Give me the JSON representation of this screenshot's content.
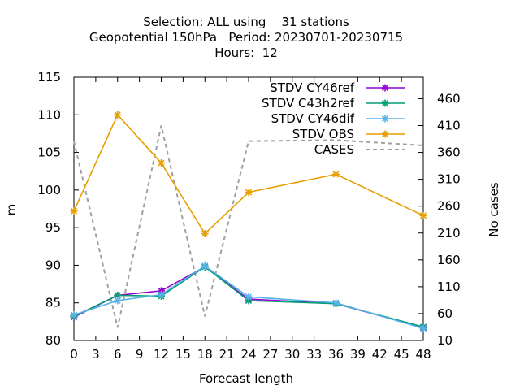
{
  "chart_data": {
    "type": "line",
    "title_lines": [
      "Selection: ALL using    31 stations",
      "Geopotential 150hPa   Period: 20230701-20230715",
      "Hours:  12"
    ],
    "xlabel": "Forecast length",
    "ylabel": "m",
    "y2label": "No cases",
    "xlim": [
      0,
      48
    ],
    "ylim": [
      80,
      115
    ],
    "y2lim": [
      10,
      500
    ],
    "xticks": [
      0,
      3,
      6,
      9,
      12,
      15,
      18,
      21,
      24,
      27,
      30,
      33,
      36,
      39,
      42,
      45,
      48
    ],
    "yticks": [
      80,
      85,
      90,
      95,
      100,
      105,
      110,
      115
    ],
    "y2ticks": [
      10,
      60,
      110,
      160,
      210,
      260,
      310,
      360,
      410,
      460
    ],
    "legend_position": "top-right",
    "x": [
      0,
      6,
      12,
      18,
      24,
      36,
      48
    ],
    "series": [
      {
        "name": "STDV CY46ref",
        "color": "#9400d3",
        "marker": "x",
        "axis": "y",
        "values": [
          83.1,
          86.0,
          86.6,
          89.8,
          85.5,
          84.9,
          81.7
        ]
      },
      {
        "name": "STDV C43h2ref",
        "color": "#009e73",
        "marker": "x",
        "axis": "y",
        "values": [
          83.2,
          86.0,
          85.9,
          89.8,
          85.3,
          84.9,
          81.8
        ]
      },
      {
        "name": "STDV CY46dif",
        "color": "#56b4e9",
        "marker": "x",
        "axis": "y",
        "values": [
          83.4,
          85.3,
          86.1,
          89.9,
          85.8,
          85.0,
          81.6
        ]
      },
      {
        "name": "STDV OBS",
        "color": "#e69f00",
        "marker": "x",
        "axis": "y",
        "values": [
          97.2,
          110.0,
          103.6,
          94.2,
          99.7,
          102.1,
          96.6
        ]
      },
      {
        "name": "CASES",
        "color": "#a0a0a0",
        "marker": "none",
        "dashed": true,
        "axis": "y2",
        "values": [
          381,
          34,
          410,
          55,
          381,
          383,
          373
        ]
      }
    ]
  }
}
